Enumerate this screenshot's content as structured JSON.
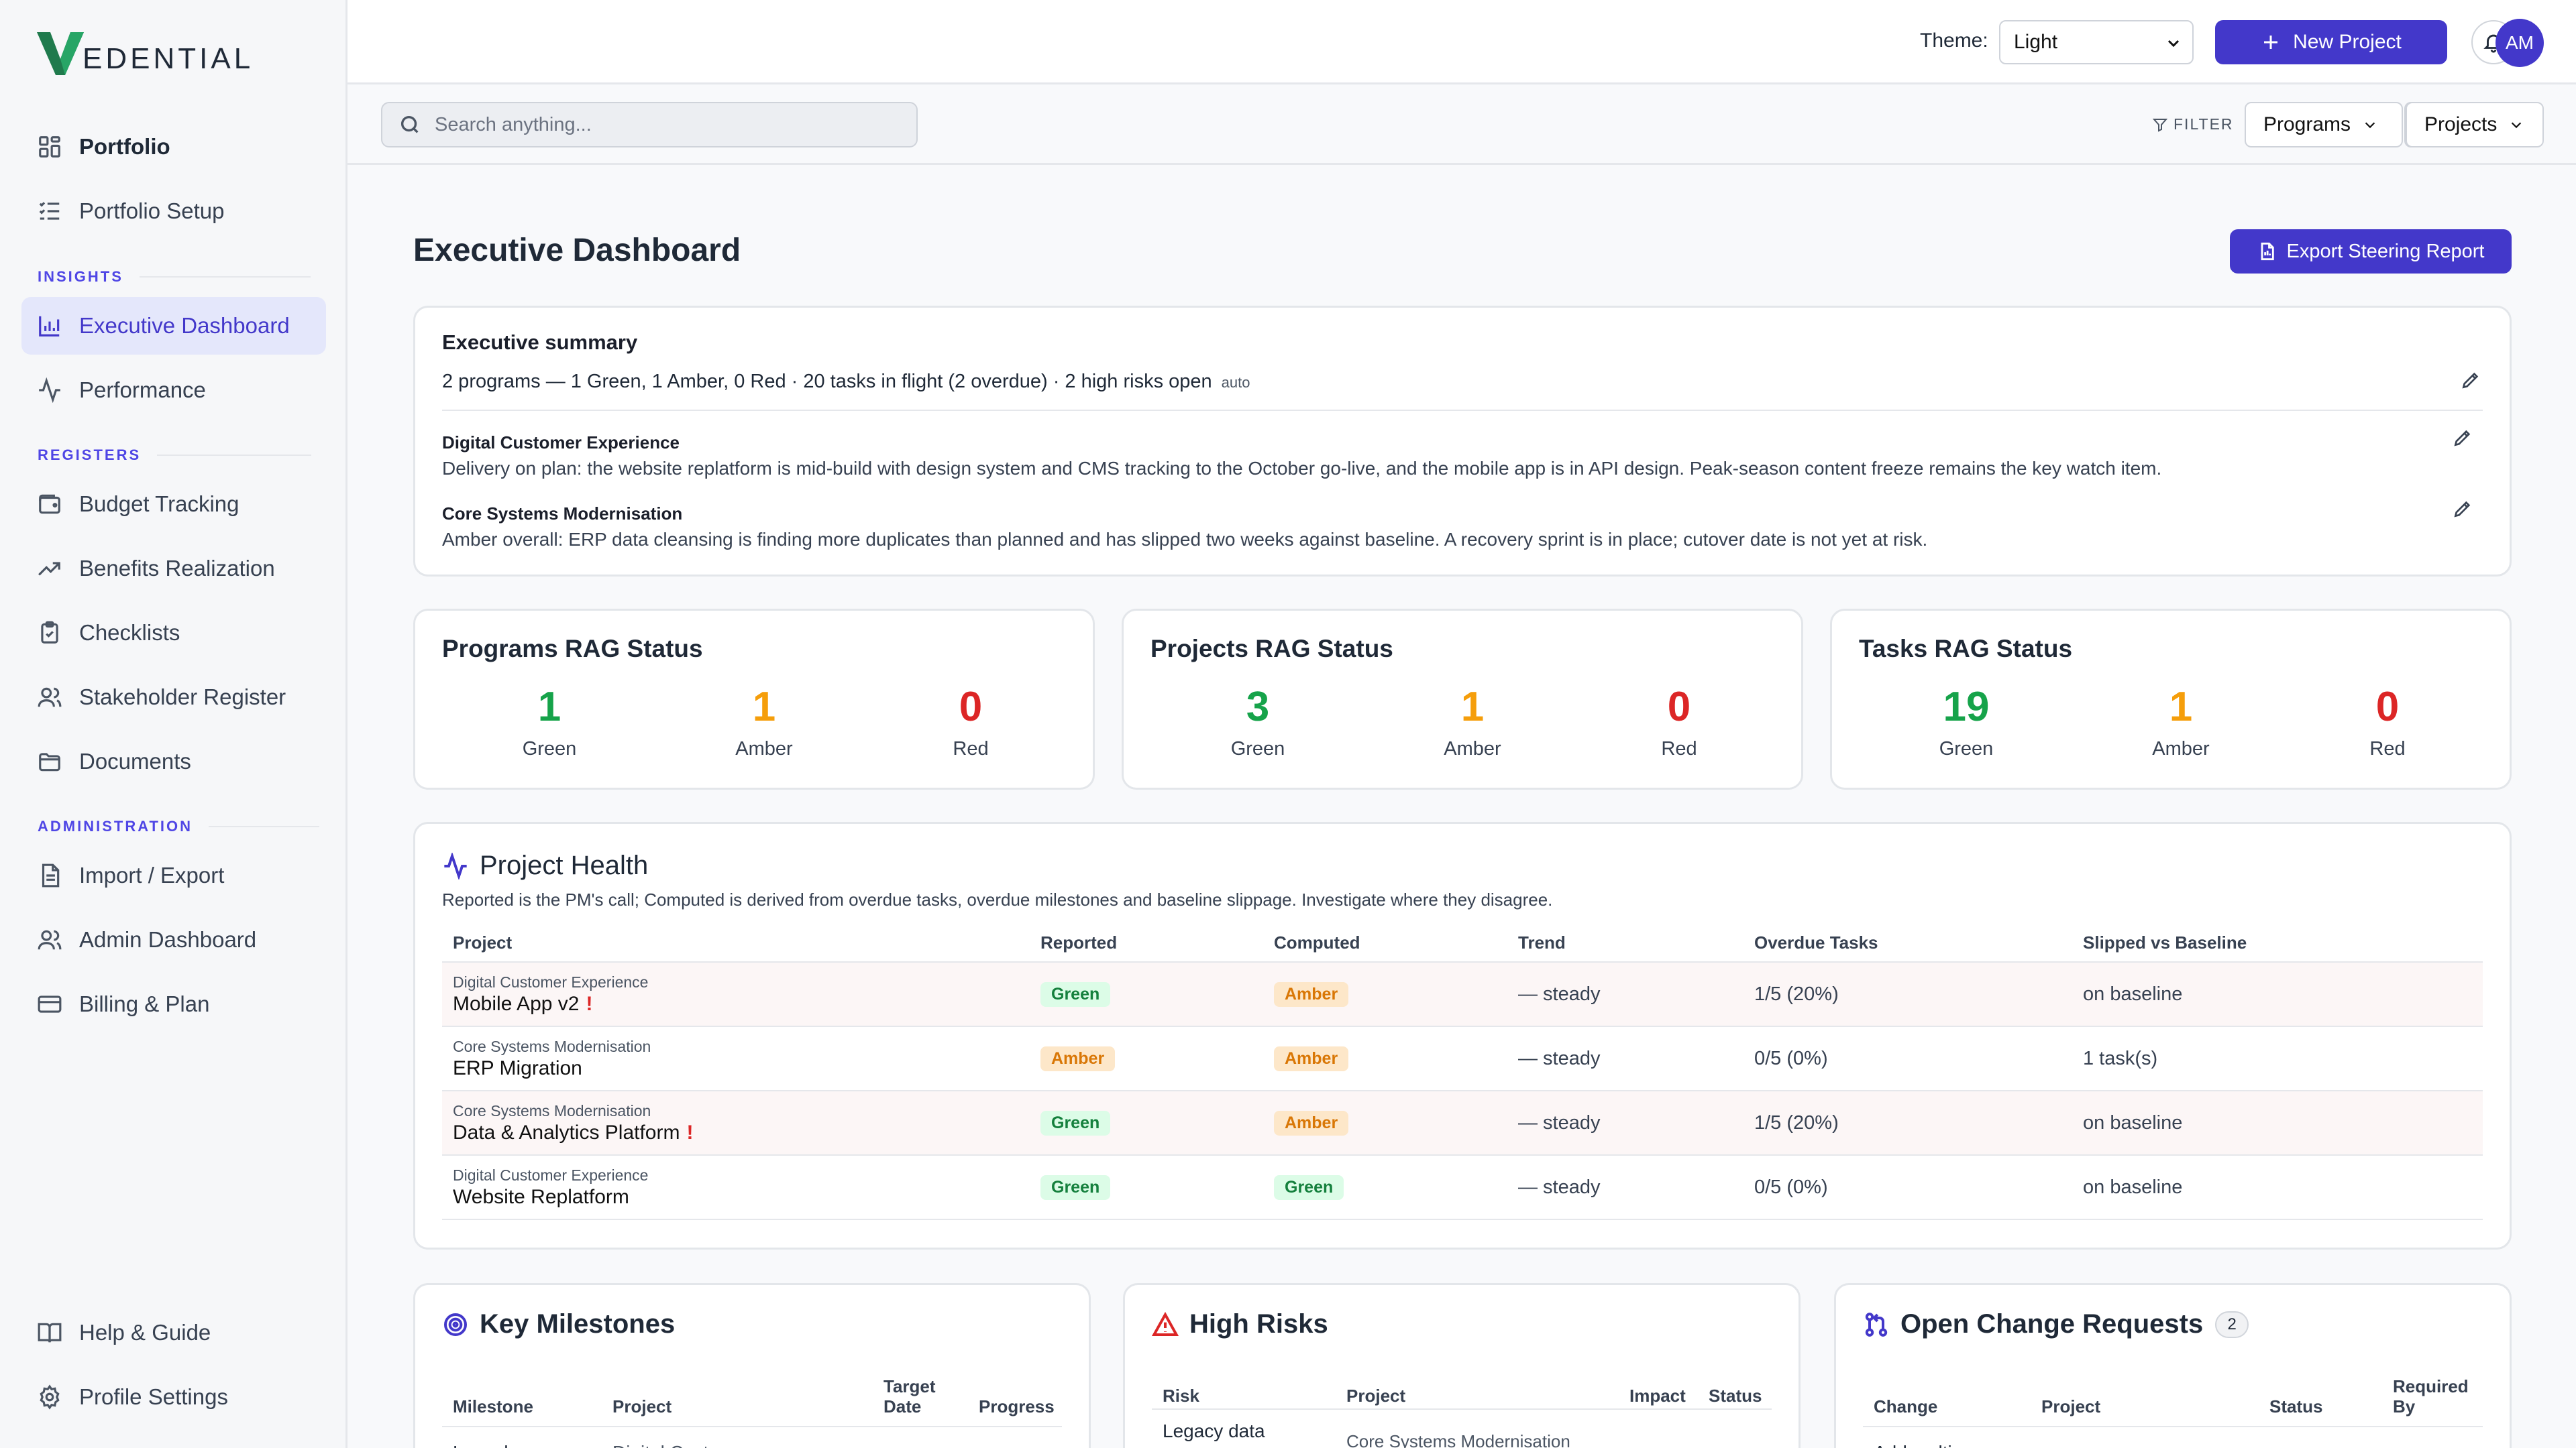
{
  "brand": {
    "name": "EDENTIAL"
  },
  "sidebar": {
    "top_items": [
      {
        "label": "Portfolio",
        "icon": "grid-icon"
      },
      {
        "label": "Portfolio Setup",
        "icon": "list-checks-icon"
      }
    ],
    "sections": [
      {
        "title": "INSIGHTS",
        "items": [
          {
            "label": "Executive Dashboard",
            "icon": "bar-chart-icon"
          },
          {
            "label": "Performance",
            "icon": "activity-icon"
          }
        ]
      },
      {
        "title": "REGISTERS",
        "items": [
          {
            "label": "Budget Tracking",
            "icon": "wallet-icon"
          },
          {
            "label": "Benefits Realization",
            "icon": "trending-up-icon"
          },
          {
            "label": "Checklists",
            "icon": "clipboard-check-icon"
          },
          {
            "label": "Stakeholder Register",
            "icon": "users-icon"
          },
          {
            "label": "Documents",
            "icon": "folder-icon"
          }
        ]
      },
      {
        "title": "ADMINISTRATION",
        "items": [
          {
            "label": "Import / Export",
            "icon": "file-icon"
          },
          {
            "label": "Admin Dashboard",
            "icon": "users-icon"
          },
          {
            "label": "Billing & Plan",
            "icon": "credit-card-icon"
          }
        ]
      }
    ],
    "bottom_items": [
      {
        "label": "Help & Guide",
        "icon": "book-icon"
      },
      {
        "label": "Profile Settings",
        "icon": "gear-icon"
      }
    ]
  },
  "topbar": {
    "theme_label": "Theme:",
    "theme_value": "Light",
    "new_project_label": "New Project",
    "avatar_initials": "AM"
  },
  "subbar": {
    "search_placeholder": "Search anything...",
    "filter_label": "FILTER",
    "programs_label": "Programs",
    "projects_label": "Projects"
  },
  "page": {
    "title": "Executive Dashboard",
    "export_label": "Export Steering Report"
  },
  "summary": {
    "title": "Executive summary",
    "line": "2 programs — 1 Green, 1 Amber, 0 Red · 20 tasks in flight (2 overdue) · 2 high risks open",
    "auto_tag": "auto",
    "programs": [
      {
        "name": "Digital Customer Experience",
        "text": "Delivery on plan: the website replatform is mid-build with design system and CMS tracking to the October go-live, and the mobile app is in API design. Peak-season content freeze remains the key watch item."
      },
      {
        "name": "Core Systems Modernisation",
        "text": "Amber overall: ERP data cleansing is finding more duplicates than planned and has slipped two weeks against baseline. A recovery sprint is in place; cutover date is not yet at risk."
      }
    ]
  },
  "rag": [
    {
      "title": "Programs RAG Status",
      "green": "1",
      "amber": "1",
      "red": "0"
    },
    {
      "title": "Projects RAG Status",
      "green": "3",
      "amber": "1",
      "red": "0"
    },
    {
      "title": "Tasks RAG Status",
      "green": "19",
      "amber": "1",
      "red": "0"
    }
  ],
  "rag_labels": {
    "green": "Green",
    "amber": "Amber",
    "red": "Red"
  },
  "health": {
    "title": "Project Health",
    "subtitle": "Reported is the PM's call; Computed is derived from overdue tasks, overdue milestones and baseline slippage. Investigate where they disagree.",
    "columns": [
      "Project",
      "Reported",
      "Computed",
      "Trend",
      "Overdue Tasks",
      "Slipped vs Baseline"
    ],
    "rows": [
      {
        "program": "Digital Customer Experience",
        "project": "Mobile App v2",
        "flag": "!",
        "reported": "Green",
        "computed": "Amber",
        "trend": "— steady",
        "overdue": "1/5 (20%)",
        "slipped": "on baseline"
      },
      {
        "program": "Core Systems Modernisation",
        "project": "ERP Migration",
        "flag": "",
        "reported": "Amber",
        "computed": "Amber",
        "trend": "— steady",
        "overdue": "0/5 (0%)",
        "slipped": "1 task(s)"
      },
      {
        "program": "Core Systems Modernisation",
        "project": "Data & Analytics Platform",
        "flag": "!",
        "reported": "Green",
        "computed": "Amber",
        "trend": "— steady",
        "overdue": "1/5 (20%)",
        "slipped": "on baseline"
      },
      {
        "program": "Digital Customer Experience",
        "project": "Website Replatform",
        "flag": "",
        "reported": "Green",
        "computed": "Green",
        "trend": "— steady",
        "overdue": "0/5 (0%)",
        "slipped": "on baseline"
      }
    ]
  },
  "milestones": {
    "title": "Key Milestones",
    "columns": [
      "Milestone",
      "Project",
      "Target Date",
      "Progress"
    ],
    "first_row": {
      "milestone": "Launch",
      "project": "Digital Customer"
    }
  },
  "risks": {
    "title": "High Risks",
    "columns": [
      "Risk",
      "Project",
      "Impact",
      "Status"
    ],
    "first_row": {
      "risk": "Legacy data",
      "project": "Core Systems Modernisation"
    }
  },
  "changes": {
    "title": "Open Change Requests",
    "count": "2",
    "columns": [
      "Change",
      "Project",
      "Status",
      "Required By"
    ],
    "first_row": {
      "change": "Add multi"
    }
  },
  "colors": {
    "accent": "#4338ca",
    "green": "#16a34a",
    "amber": "#f59e0b",
    "red": "#dc2626"
  }
}
